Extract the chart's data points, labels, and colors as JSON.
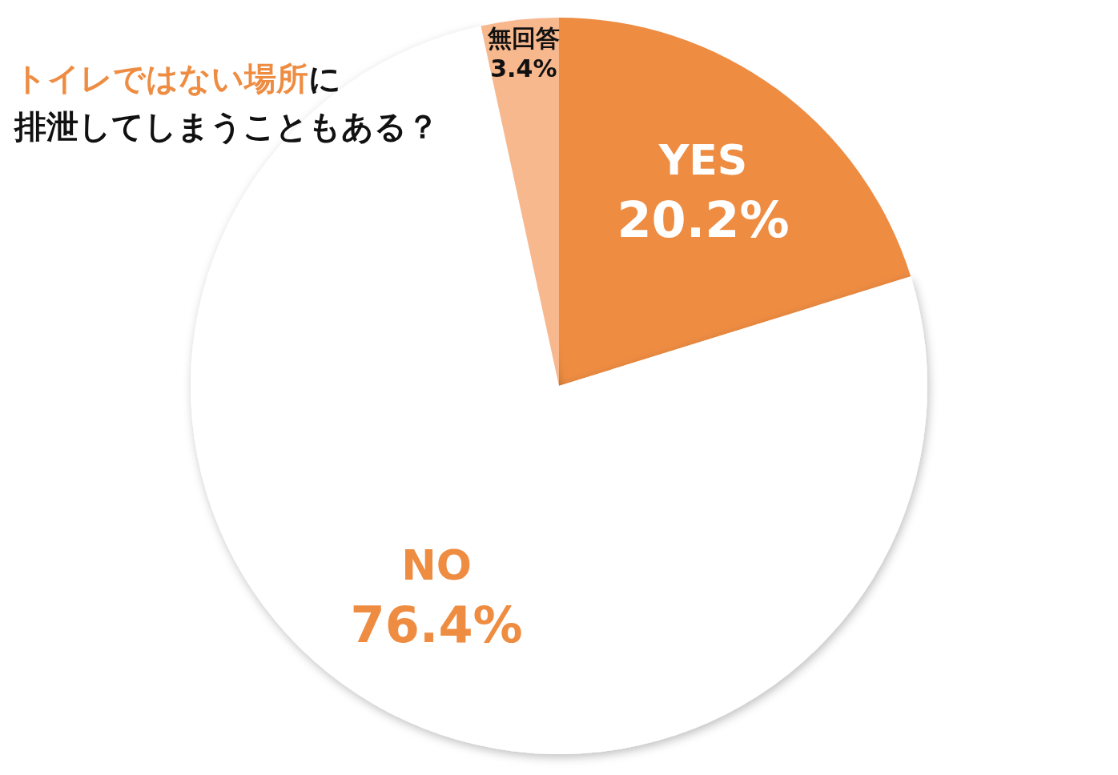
{
  "chart_data": {
    "type": "pie",
    "title": "**トイレではない場所**に",
    "subtitle": "排泄してしまうこともある？",
    "categories": [
      "YES",
      "NO",
      "無回答"
    ],
    "values": [
      20.2,
      76.4,
      3.4
    ],
    "colors": [
      "#ee8c42",
      "#ffffff",
      "#f8b88e"
    ],
    "value_labels": [
      "20.2%",
      "76.4%",
      "3.4%"
    ],
    "legend": false
  }
}
